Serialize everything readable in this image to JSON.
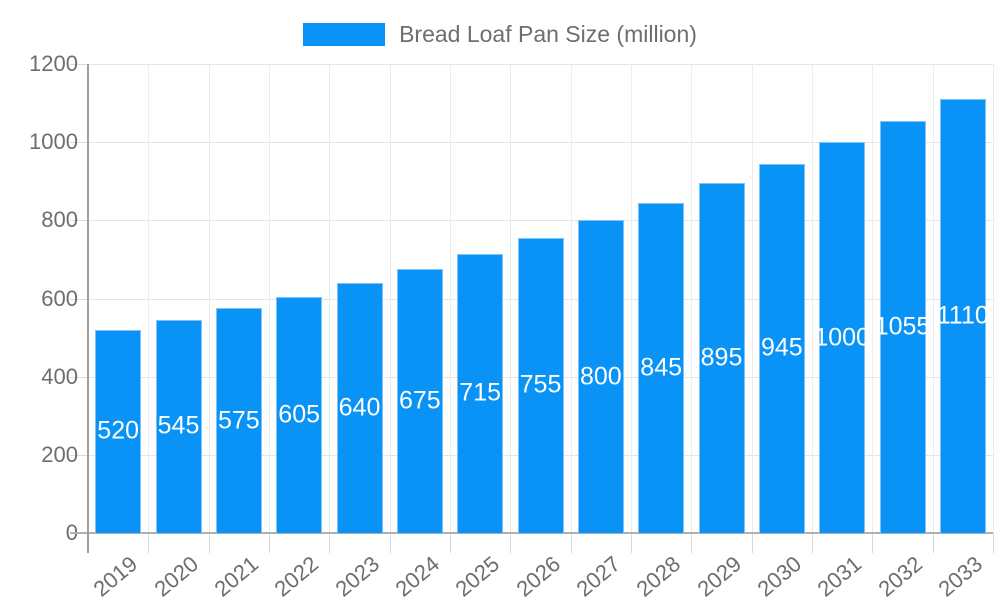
{
  "legend": {
    "label": "Bread Loaf Pan Size (million)",
    "swatch_color": "#0993f7"
  },
  "chart_data": {
    "type": "bar",
    "title": "Bread Loaf Pan Size (million)",
    "categories": [
      "2019",
      "2020",
      "2021",
      "2022",
      "2023",
      "2024",
      "2025",
      "2026",
      "2027",
      "2028",
      "2029",
      "2030",
      "2031",
      "2032",
      "2033"
    ],
    "values": [
      520,
      545,
      575,
      605,
      640,
      675,
      715,
      755,
      800,
      845,
      895,
      945,
      1000,
      1055,
      1110
    ],
    "xlabel": "",
    "ylabel": "",
    "ylim": [
      0,
      1200
    ],
    "yticks": [
      0,
      200,
      400,
      600,
      800,
      1000,
      1200
    ],
    "grid": true,
    "legend_position": "top-center",
    "bar_color": "#0993f7",
    "bar_border_color": "#7fc2f8",
    "data_label_color": "#ffffff",
    "axis_text_color": "#6e6e6e",
    "xtick_rotation_deg": -40
  }
}
